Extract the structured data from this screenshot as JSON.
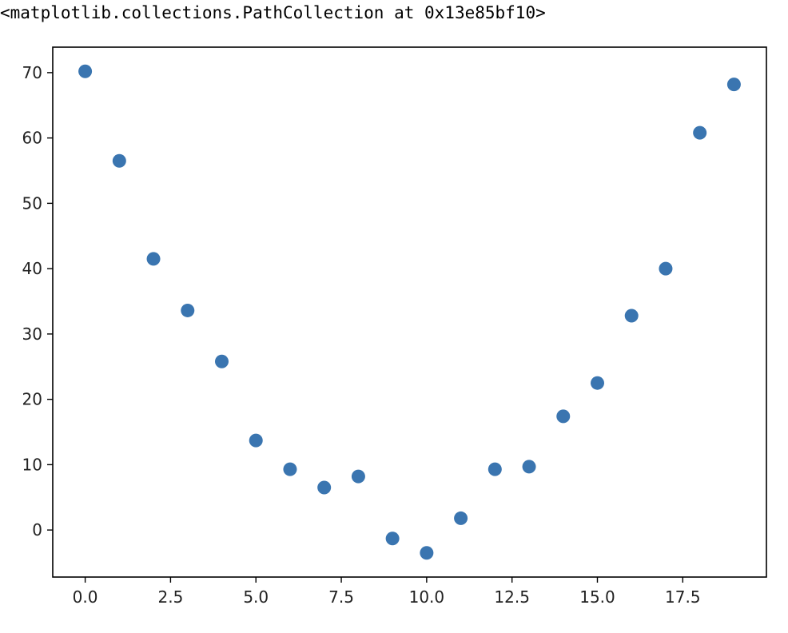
{
  "output": {
    "repr_text": "<matplotlib.collections.PathCollection at 0x13e85bf10>"
  },
  "chart_data": {
    "type": "scatter",
    "x": [
      0,
      1,
      2,
      3,
      4,
      5,
      6,
      7,
      8,
      9,
      10,
      11,
      12,
      13,
      14,
      15,
      16,
      17,
      18,
      19
    ],
    "y": [
      70.2,
      56.5,
      41.5,
      33.6,
      25.8,
      13.7,
      9.3,
      6.5,
      8.2,
      -1.3,
      -3.5,
      1.8,
      9.3,
      9.7,
      17.4,
      22.5,
      32.8,
      40.0,
      60.8,
      68.2
    ],
    "title": "",
    "xlabel": "",
    "ylabel": "",
    "xlim": [
      -0.95,
      19.95
    ],
    "ylim": [
      -7.2,
      73.9
    ],
    "xticks": [
      0,
      2.5,
      5,
      7.5,
      10,
      12.5,
      15,
      17.5
    ],
    "xtick_labels": [
      "0.0",
      "2.5",
      "5.0",
      "7.5",
      "10.0",
      "12.5",
      "15.0",
      "17.5"
    ],
    "yticks": [
      0,
      10,
      20,
      30,
      40,
      50,
      60,
      70
    ],
    "ytick_labels": [
      "0",
      "10",
      "20",
      "30",
      "40",
      "50",
      "60",
      "70"
    ],
    "grid": false,
    "legend": "none",
    "marker_color": "#3a75b0"
  }
}
